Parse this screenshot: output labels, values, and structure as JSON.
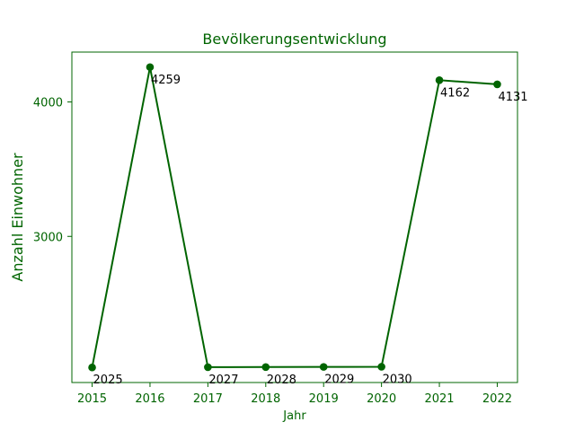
{
  "chart_data": {
    "type": "line",
    "title": "Bevölkerungsentwicklung",
    "xlabel": "Jahr",
    "ylabel": "Anzahl Einwohner",
    "x": [
      2015,
      2016,
      2017,
      2018,
      2019,
      2020,
      2021,
      2022
    ],
    "series": [
      {
        "values": [
          2025,
          4259,
          2027,
          2028,
          2029,
          2030,
          4162,
          4131
        ]
      }
    ],
    "xticks": [
      2015,
      2016,
      2017,
      2018,
      2019,
      2020,
      2021,
      2022
    ],
    "yticks": [
      3000,
      4000
    ],
    "xlim": [
      2014.65,
      2022.35
    ],
    "ylim": [
      1913,
      4371
    ],
    "grid": false,
    "colors": {
      "line": "#006400",
      "text": "#006400",
      "data_label": "#000000",
      "axes": "#006400"
    }
  }
}
